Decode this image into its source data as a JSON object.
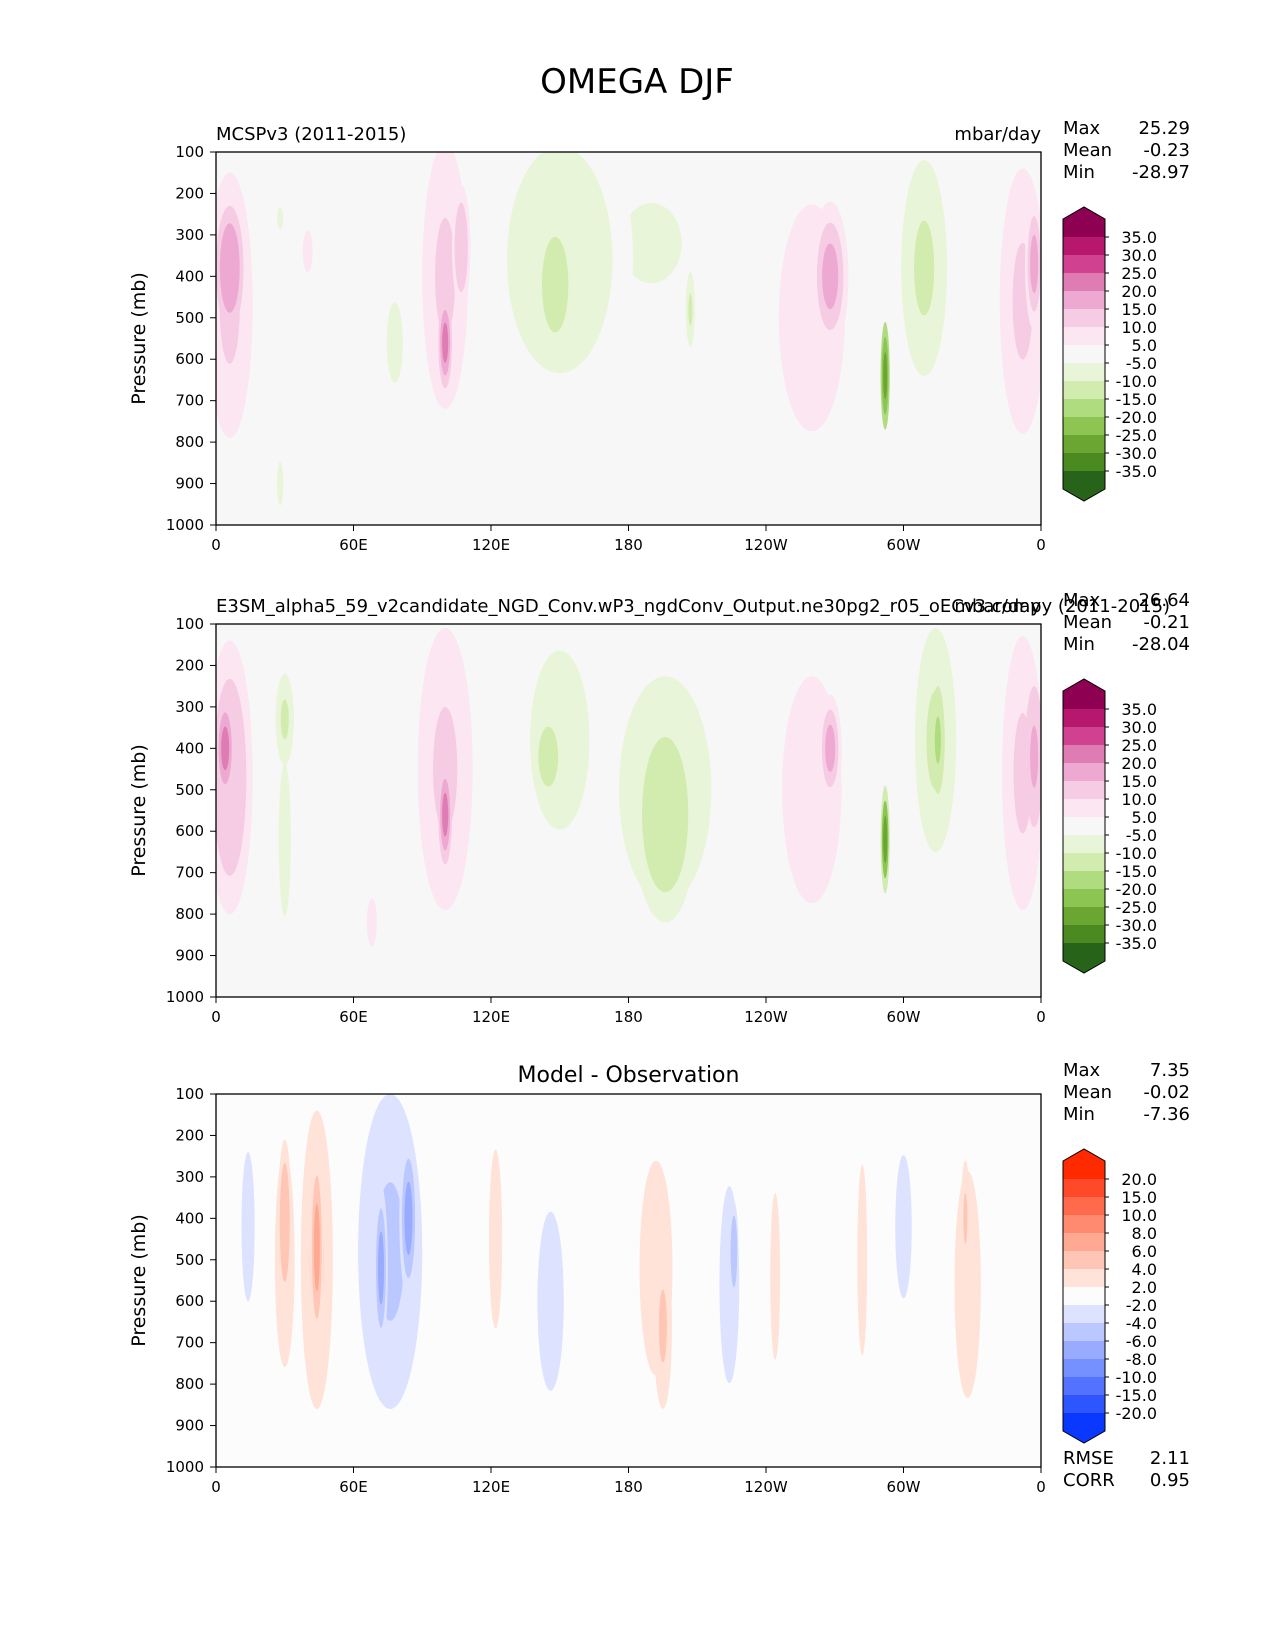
{
  "figure_title": "OMEGA DJF",
  "chart_data": [
    {
      "type": "heatmap",
      "id": "test",
      "left_title": "MCSPv3 (2011-2015)",
      "right_title": "mbar/day",
      "center_title": "",
      "ylabel": "Pressure (mb)",
      "xlabel": "",
      "xticks": [
        "0",
        "60E",
        "120E",
        "180",
        "120W",
        "60W",
        "0"
      ],
      "yticks": [
        "100",
        "200",
        "300",
        "400",
        "500",
        "600",
        "700",
        "800",
        "900",
        "1000"
      ],
      "xlim": [
        0,
        360
      ],
      "ylim": [
        1000,
        100
      ],
      "stats": [
        {
          "label": "Max",
          "value": "25.29"
        },
        {
          "label": "Mean",
          "value": "-0.23"
        },
        {
          "label": "Min",
          "value": "-28.97"
        }
      ],
      "colorbar": {
        "labels": [
          "35.0",
          "30.0",
          "25.0",
          "20.0",
          "15.0",
          "10.0",
          "5.0",
          "-5.0",
          "-10.0",
          "-15.0",
          "-20.0",
          "-25.0",
          "-30.0",
          "-35.0"
        ],
        "colors": [
          "#8e0152",
          "#b8176e",
          "#d0418f",
          "#e07cb4",
          "#eda9d1",
          "#f6cbe4",
          "#fbe6f1",
          "#f7f7f7",
          "#e9f5d8",
          "#d2ecb0",
          "#b0dc80",
          "#8cc552",
          "#6ba632",
          "#4a8a21",
          "#276419"
        ]
      },
      "blobs": [
        {
          "lon": 6,
          "p": 470,
          "wl": 10,
          "wp": 320,
          "v": 12
        },
        {
          "lon": 6,
          "p": 380,
          "wl": 6,
          "wp": 150,
          "v": 20
        },
        {
          "lon": 28,
          "p": 260,
          "wl": 3,
          "wp": 60,
          "v": -6
        },
        {
          "lon": 40,
          "p": 340,
          "wl": 3,
          "wp": 70,
          "v": 7
        },
        {
          "lon": 78,
          "p": 560,
          "wl": 8,
          "wp": 220,
          "v": -6
        },
        {
          "lon": 100,
          "p": 400,
          "wl": 10,
          "wp": 320,
          "v": 12
        },
        {
          "lon": 100,
          "p": 560,
          "wl": 3,
          "wp": 110,
          "v": 22
        },
        {
          "lon": 107,
          "p": 330,
          "wl": 4,
          "wp": 150,
          "v": 14
        },
        {
          "lon": 150,
          "p": 360,
          "wl": 32,
          "wp": 380,
          "v": -7
        },
        {
          "lon": 148,
          "p": 420,
          "wl": 8,
          "wp": 160,
          "v": -13
        },
        {
          "lon": 190,
          "p": 320,
          "wl": 30,
          "wp": 220,
          "v": -6
        },
        {
          "lon": 207,
          "p": 480,
          "wl": 2,
          "wp": 90,
          "v": -12
        },
        {
          "lon": 260,
          "p": 500,
          "wl": 20,
          "wp": 380,
          "v": 9
        },
        {
          "lon": 268,
          "p": 400,
          "wl": 8,
          "wp": 180,
          "v": 16
        },
        {
          "lon": 292,
          "p": 640,
          "wl": 2,
          "wp": 130,
          "v": -28
        },
        {
          "lon": 309,
          "p": 380,
          "wl": 10,
          "wp": 260,
          "v": -11
        },
        {
          "lon": 352,
          "p": 460,
          "wl": 10,
          "wp": 320,
          "v": 12
        },
        {
          "lon": 357,
          "p": 370,
          "wl": 4,
          "wp": 160,
          "v": 18
        },
        {
          "lon": 28,
          "p": 900,
          "wl": 3,
          "wp": 120,
          "v": -6
        }
      ]
    },
    {
      "type": "heatmap",
      "id": "ref",
      "left_title": "E3SM_alpha5_59_v2candidate_NGD_Conv.wP3_ngdConv_Output.ne30pg2_r05_oECv3.compy (2011-2015)",
      "right_title": "mbar/day",
      "center_title": "",
      "ylabel": "Pressure (mb)",
      "xlabel": "",
      "xticks": [
        "0",
        "60E",
        "120E",
        "180",
        "120W",
        "60W",
        "0"
      ],
      "yticks": [
        "100",
        "200",
        "300",
        "400",
        "500",
        "600",
        "700",
        "800",
        "900",
        "1000"
      ],
      "xlim": [
        0,
        360
      ],
      "ylim": [
        1000,
        100
      ],
      "stats": [
        {
          "label": "Max",
          "value": "26.64"
        },
        {
          "label": "Mean",
          "value": "-0.21"
        },
        {
          "label": "Min",
          "value": "-28.04"
        }
      ],
      "colorbar": {
        "labels": [
          "35.0",
          "30.0",
          "25.0",
          "20.0",
          "15.0",
          "10.0",
          "5.0",
          "-5.0",
          "-10.0",
          "-15.0",
          "-20.0",
          "-25.0",
          "-30.0",
          "-35.0"
        ],
        "colors": [
          "#8e0152",
          "#b8176e",
          "#d0418f",
          "#e07cb4",
          "#eda9d1",
          "#f6cbe4",
          "#fbe6f1",
          "#f7f7f7",
          "#e9f5d8",
          "#d2ecb0",
          "#b0dc80",
          "#8cc552",
          "#6ba632",
          "#4a8a21",
          "#276419"
        ]
      },
      "blobs": [
        {
          "lon": 6,
          "p": 470,
          "wl": 10,
          "wp": 330,
          "v": 13
        },
        {
          "lon": 4,
          "p": 400,
          "wl": 4,
          "wp": 120,
          "v": 24
        },
        {
          "lon": 30,
          "p": 330,
          "wl": 4,
          "wp": 110,
          "v": -12
        },
        {
          "lon": 30,
          "p": 620,
          "wl": 6,
          "wp": 420,
          "v": -6
        },
        {
          "lon": 68,
          "p": 820,
          "wl": 3,
          "wp": 80,
          "v": 7
        },
        {
          "lon": 100,
          "p": 450,
          "wl": 12,
          "wp": 340,
          "v": 11
        },
        {
          "lon": 100,
          "p": 560,
          "wl": 3,
          "wp": 120,
          "v": 24
        },
        {
          "lon": 150,
          "p": 380,
          "wl": 18,
          "wp": 300,
          "v": -7
        },
        {
          "lon": 145,
          "p": 420,
          "wl": 6,
          "wp": 100,
          "v": -13
        },
        {
          "lon": 196,
          "p": 500,
          "wl": 28,
          "wp": 380,
          "v": -9
        },
        {
          "lon": 196,
          "p": 560,
          "wl": 14,
          "wp": 260,
          "v": -13
        },
        {
          "lon": 260,
          "p": 500,
          "wl": 18,
          "wp": 380,
          "v": 9
        },
        {
          "lon": 268,
          "p": 400,
          "wl": 5,
          "wp": 130,
          "v": 18
        },
        {
          "lon": 292,
          "p": 620,
          "wl": 2,
          "wp": 130,
          "v": -26
        },
        {
          "lon": 314,
          "p": 380,
          "wl": 9,
          "wp": 270,
          "v": -12
        },
        {
          "lon": 315,
          "p": 380,
          "wl": 3,
          "wp": 130,
          "v": -19
        },
        {
          "lon": 352,
          "p": 460,
          "wl": 9,
          "wp": 330,
          "v": 12
        },
        {
          "lon": 357,
          "p": 420,
          "wl": 4,
          "wp": 170,
          "v": 19
        }
      ]
    },
    {
      "type": "heatmap",
      "id": "diff",
      "left_title": "",
      "right_title": "",
      "center_title": "Model - Observation",
      "ylabel": "Pressure (mb)",
      "xlabel": "",
      "xticks": [
        "0",
        "60E",
        "120E",
        "180",
        "120W",
        "60W",
        "0"
      ],
      "yticks": [
        "100",
        "200",
        "300",
        "400",
        "500",
        "600",
        "700",
        "800",
        "900",
        "1000"
      ],
      "xlim": [
        0,
        360
      ],
      "ylim": [
        1000,
        100
      ],
      "stats": [
        {
          "label": "Max",
          "value": "7.35"
        },
        {
          "label": "Mean",
          "value": "-0.02"
        },
        {
          "label": "Min",
          "value": "-7.36"
        }
      ],
      "bottom_stats": [
        {
          "label": "RMSE",
          "value": "2.11"
        },
        {
          "label": "CORR",
          "value": "0.95"
        }
      ],
      "colorbar": {
        "labels": [
          "20.0",
          "15.0",
          "10.0",
          "8.0",
          "6.0",
          "4.0",
          "2.0",
          "-2.0",
          "-4.0",
          "-6.0",
          "-8.0",
          "-10.0",
          "-15.0",
          "-20.0"
        ],
        "colors": [
          "#ff2a00",
          "#ff4a2a",
          "#ff6a4d",
          "#ff8a70",
          "#ffa892",
          "#ffc6b5",
          "#ffe3d9",
          "#fcfcfc",
          "#dde3ff",
          "#bac8ff",
          "#98abff",
          "#7590ff",
          "#5272ff",
          "#2e56ff",
          "#0b38ff"
        ]
      },
      "blobs": [
        {
          "lon": 14,
          "p": 420,
          "wl": 4,
          "wp": 250,
          "v": -2.8
        },
        {
          "lon": 30,
          "p": 500,
          "wl": 6,
          "wp": 360,
          "v": 3.6
        },
        {
          "lon": 30,
          "p": 410,
          "wl": 3,
          "wp": 200,
          "v": 5.5
        },
        {
          "lon": 44,
          "p": 500,
          "wl": 7,
          "wp": 360,
          "v": 4.8
        },
        {
          "lon": 44,
          "p": 470,
          "wl": 3,
          "wp": 240,
          "v": 6.5
        },
        {
          "lon": 76,
          "p": 480,
          "wl": 14,
          "wp": 380,
          "v": -4.5
        },
        {
          "lon": 72,
          "p": 520,
          "wl": 3,
          "wp": 200,
          "v": -6.5
        },
        {
          "lon": 84,
          "p": 400,
          "wl": 4,
          "wp": 200,
          "v": -7
        },
        {
          "lon": 122,
          "p": 450,
          "wl": 4,
          "wp": 300,
          "v": 2.6
        },
        {
          "lon": 146,
          "p": 600,
          "wl": 8,
          "wp": 300,
          "v": -2.6
        },
        {
          "lon": 192,
          "p": 520,
          "wl": 10,
          "wp": 360,
          "v": 3.2
        },
        {
          "lon": 195,
          "p": 660,
          "wl": 4,
          "wp": 200,
          "v": 4.6
        },
        {
          "lon": 224,
          "p": 560,
          "wl": 6,
          "wp": 330,
          "v": -3.4
        },
        {
          "lon": 226,
          "p": 480,
          "wl": 2,
          "wp": 120,
          "v": -5.5
        },
        {
          "lon": 244,
          "p": 540,
          "wl": 3,
          "wp": 280,
          "v": 2.6
        },
        {
          "lon": 282,
          "p": 500,
          "wl": 3,
          "wp": 320,
          "v": 3
        },
        {
          "lon": 300,
          "p": 420,
          "wl": 5,
          "wp": 240,
          "v": -3.6
        },
        {
          "lon": 328,
          "p": 560,
          "wl": 8,
          "wp": 380,
          "v": 3
        },
        {
          "lon": 327,
          "p": 400,
          "wl": 2,
          "wp": 140,
          "v": 5
        }
      ]
    }
  ]
}
